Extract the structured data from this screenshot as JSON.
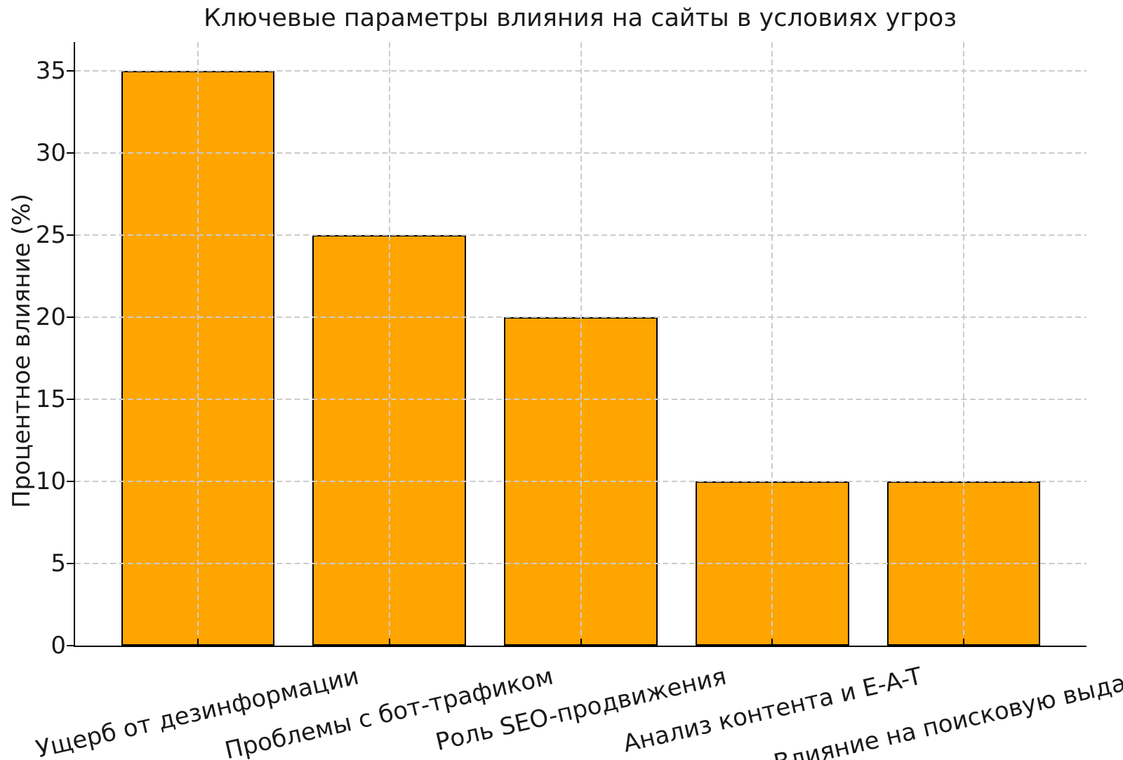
{
  "chart_data": {
    "type": "bar",
    "title": "Ключевые параметры влияния на сайты в условиях угроз",
    "xlabel": "",
    "ylabel": "Процентное влияние (%)",
    "categories": [
      "Ущерб от дезинформации",
      "Проблемы с бот-трафиком",
      "Роль SEO-продвижения",
      "Анализ контента и E-A-T",
      "Влияние на поисковую выдачу"
    ],
    "values": [
      35,
      25,
      20,
      10,
      10
    ],
    "ylim": [
      0,
      36.75
    ],
    "yticks": [
      0,
      5,
      10,
      15,
      20,
      25,
      30,
      35
    ],
    "bar_color": "#FFA500",
    "bar_edge_color": "#000000",
    "grid": true,
    "grid_color": "#cccccc",
    "grid_style": "dashed",
    "legend": null,
    "background": "#ffffff",
    "xtick_label_rotation_deg": 13
  }
}
